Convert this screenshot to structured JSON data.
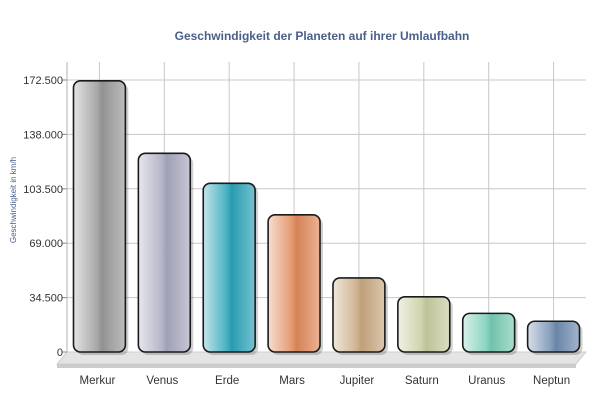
{
  "chart_data": {
    "type": "bar",
    "title": "Geschwindigkeit der Planeten auf ihrer Umlaufbahn",
    "xlabel": "",
    "ylabel": "Geschwindigkeit in km/h",
    "ylim": [
      0,
      172500
    ],
    "yticks": [
      0,
      34500,
      69000,
      103500,
      138000,
      172500
    ],
    "ytick_labels": [
      "0",
      "34.500",
      "69.000",
      "103.500",
      "138.000",
      "172.500"
    ],
    "categories": [
      "Merkur",
      "Venus",
      "Erde",
      "Mars",
      "Jupiter",
      "Saturn",
      "Uranus",
      "Neptun"
    ],
    "values": [
      172000,
      126000,
      107000,
      87000,
      47000,
      35000,
      24500,
      19500
    ],
    "colors": [
      "#9a9a9a",
      "#a8a8c0",
      "#2aa3b8",
      "#e0895a",
      "#c9a880",
      "#c8cca0",
      "#78ccb4",
      "#6f8cb0"
    ],
    "grid": true,
    "legend": "none"
  }
}
